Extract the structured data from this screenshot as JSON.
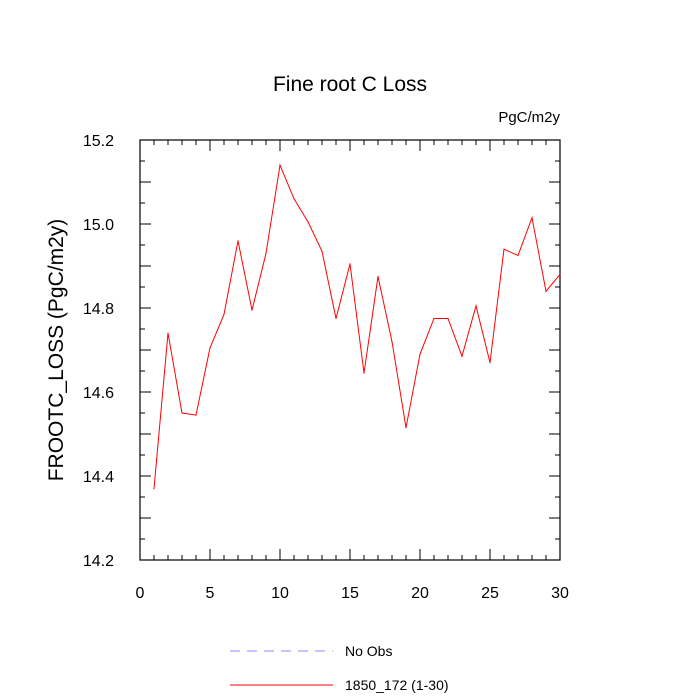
{
  "chart_data": {
    "type": "line",
    "title": "Fine root C Loss",
    "units": "PgC/m2y",
    "xlabel": "",
    "ylabel": "FROOTC_LOSS  (PgC/m2y)",
    "xlim": [
      0,
      30
    ],
    "ylim": [
      14.2,
      15.2
    ],
    "x_ticks": [
      "0",
      "5",
      "10",
      "15",
      "20",
      "25",
      "30"
    ],
    "y_ticks": [
      "14.2",
      "14.4",
      "14.6",
      "14.8",
      "15.0",
      "15.2"
    ],
    "grid": false,
    "legend_position": "bottom",
    "x": [
      1,
      2,
      3,
      4,
      5,
      6,
      7,
      8,
      9,
      10,
      11,
      12,
      13,
      14,
      15,
      16,
      17,
      18,
      19,
      20,
      21,
      22,
      23,
      24,
      25,
      26,
      27,
      28,
      29,
      30
    ],
    "series": [
      {
        "name": "1850_172 (1-30)",
        "color": "#ff0000",
        "style": "solid",
        "values": [
          14.37,
          14.74,
          14.55,
          14.545,
          14.705,
          14.785,
          14.96,
          14.795,
          14.93,
          15.14,
          15.06,
          15.005,
          14.935,
          14.775,
          14.905,
          14.645,
          14.875,
          14.72,
          14.515,
          14.69,
          14.775,
          14.775,
          14.685,
          14.805,
          14.67,
          14.94,
          14.925,
          15.015,
          14.84,
          14.88
        ]
      }
    ],
    "legend": [
      {
        "name": "No Obs",
        "color": "#8a8aff",
        "style": "dashed"
      },
      {
        "name": "1850_172 (1-30)",
        "color": "#ff0000",
        "style": "solid"
      }
    ]
  }
}
